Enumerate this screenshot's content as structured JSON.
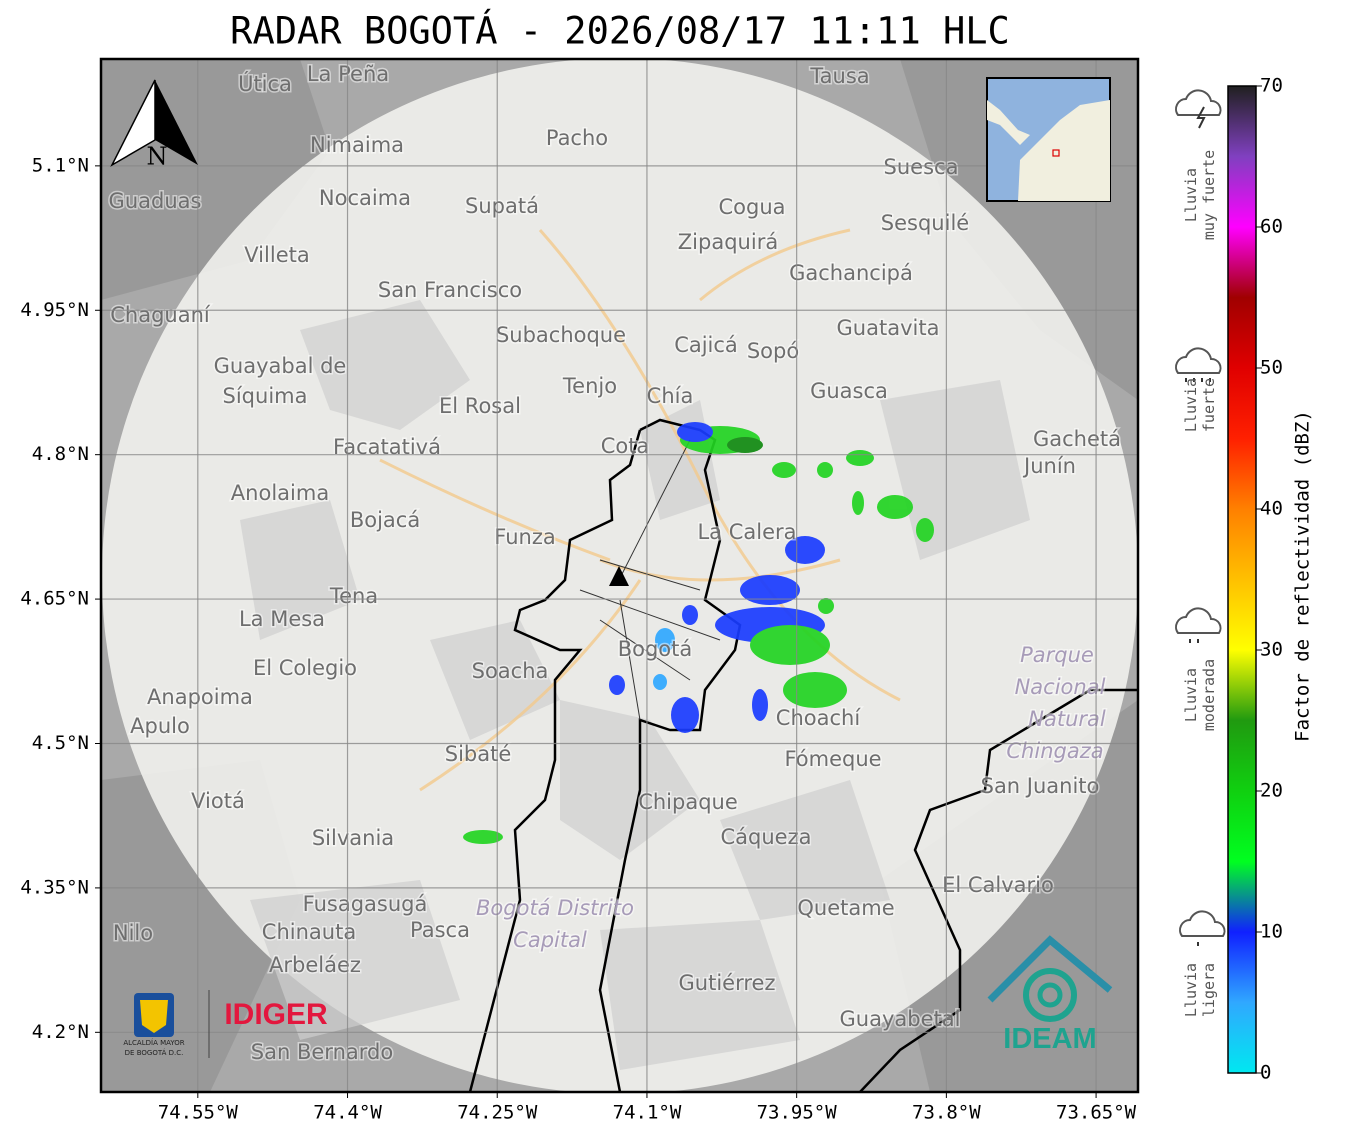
{
  "title": "RADAR BOGOTÁ - 2026/08/17 11:11 HLC",
  "map": {
    "lon_range": [
      -74.647,
      -73.608
    ],
    "lat_range": [
      4.138,
      5.211
    ],
    "lon_ticks": [
      {
        "value": -74.55,
        "label": "74.55°W"
      },
      {
        "value": -74.4,
        "label": "74.4°W"
      },
      {
        "value": -74.25,
        "label": "74.25°W"
      },
      {
        "value": -74.1,
        "label": "74.1°W"
      },
      {
        "value": -73.95,
        "label": "73.95°W"
      },
      {
        "value": -73.8,
        "label": "73.8°W"
      },
      {
        "value": -73.65,
        "label": "73.65°W"
      }
    ],
    "lat_ticks": [
      {
        "value": 5.1,
        "label": "5.1°N"
      },
      {
        "value": 4.95,
        "label": "4.95°N"
      },
      {
        "value": 4.8,
        "label": "4.8°N"
      },
      {
        "value": 4.65,
        "label": "4.65°N"
      },
      {
        "value": 4.5,
        "label": "4.5°N"
      },
      {
        "value": 4.35,
        "label": "4.35°N"
      },
      {
        "value": 4.2,
        "label": "4.2°N"
      }
    ],
    "grid": true,
    "north_label": "N",
    "places": [
      "La Peña",
      "Útica",
      "Tausa",
      "Pacho",
      "Nimaima",
      "Suesca",
      "Guaduas",
      "Nocaima",
      "Supatá",
      "Cogua",
      "Sesquilé",
      "Zipaquirá",
      "Villeta",
      "Gachancipá",
      "San Francisco",
      "Chaguaní",
      "Guatavita",
      "Subachoque",
      "Cajicá",
      "Sopó",
      "Guayabal de",
      "Síquima",
      "Tenjo",
      "Guasca",
      "Chía",
      "El Rosal",
      "Cota",
      "Gachetá",
      "Facatativá",
      "Junín",
      "Anolaima",
      "Bojacá",
      "La Calera",
      "Funza",
      "Tena",
      "La Mesa",
      "El Colegio",
      "Soacha",
      "Bogotá",
      "Anapoima",
      "Apulo",
      "Choachí",
      "Fómeque",
      "Sibaté",
      "San Juanito",
      "Viotá",
      "Chipaque",
      "Silvania",
      "Cáqueza",
      "El Calvario",
      "Fusagasugá",
      "Quetame",
      "Chinauta",
      "Pasca",
      "Nilo",
      "Arbeláez",
      "Gutiérrez",
      "Guayabetal",
      "San Bernardo"
    ],
    "italic_places": [
      "Parque",
      "Nacional",
      "Natural",
      "Chingaza",
      "Bogotá Distrito",
      "Capital"
    ]
  },
  "colorbar": {
    "label": "Factor de reflectividad (dBZ)",
    "range": [
      0,
      70
    ],
    "ticks": [
      0,
      10,
      20,
      30,
      40,
      50,
      60,
      70
    ],
    "colors": [
      "#00e8f0",
      "#30a8ff",
      "#1020ff",
      "#00ff20",
      "#10d010",
      "#209a10",
      "#ffff00",
      "#ffc000",
      "#ff8000",
      "#ff2000",
      "#e00000",
      "#a00000",
      "#ff00ff",
      "#8040c0",
      "#202020"
    ]
  },
  "rain_levels": [
    [
      "Lluvia",
      "muy fuerte"
    ],
    [
      "Lluvia",
      "fuerte"
    ],
    [
      "Lluvia",
      "moderada"
    ],
    [
      "Lluvia",
      "ligera"
    ]
  ],
  "logos": {
    "alcaldia": [
      "ALCALDÍA MAYOR",
      "DE BOGOTÁ D.C."
    ],
    "idiger": "IDIGER",
    "ideam": "IDEAM"
  }
}
